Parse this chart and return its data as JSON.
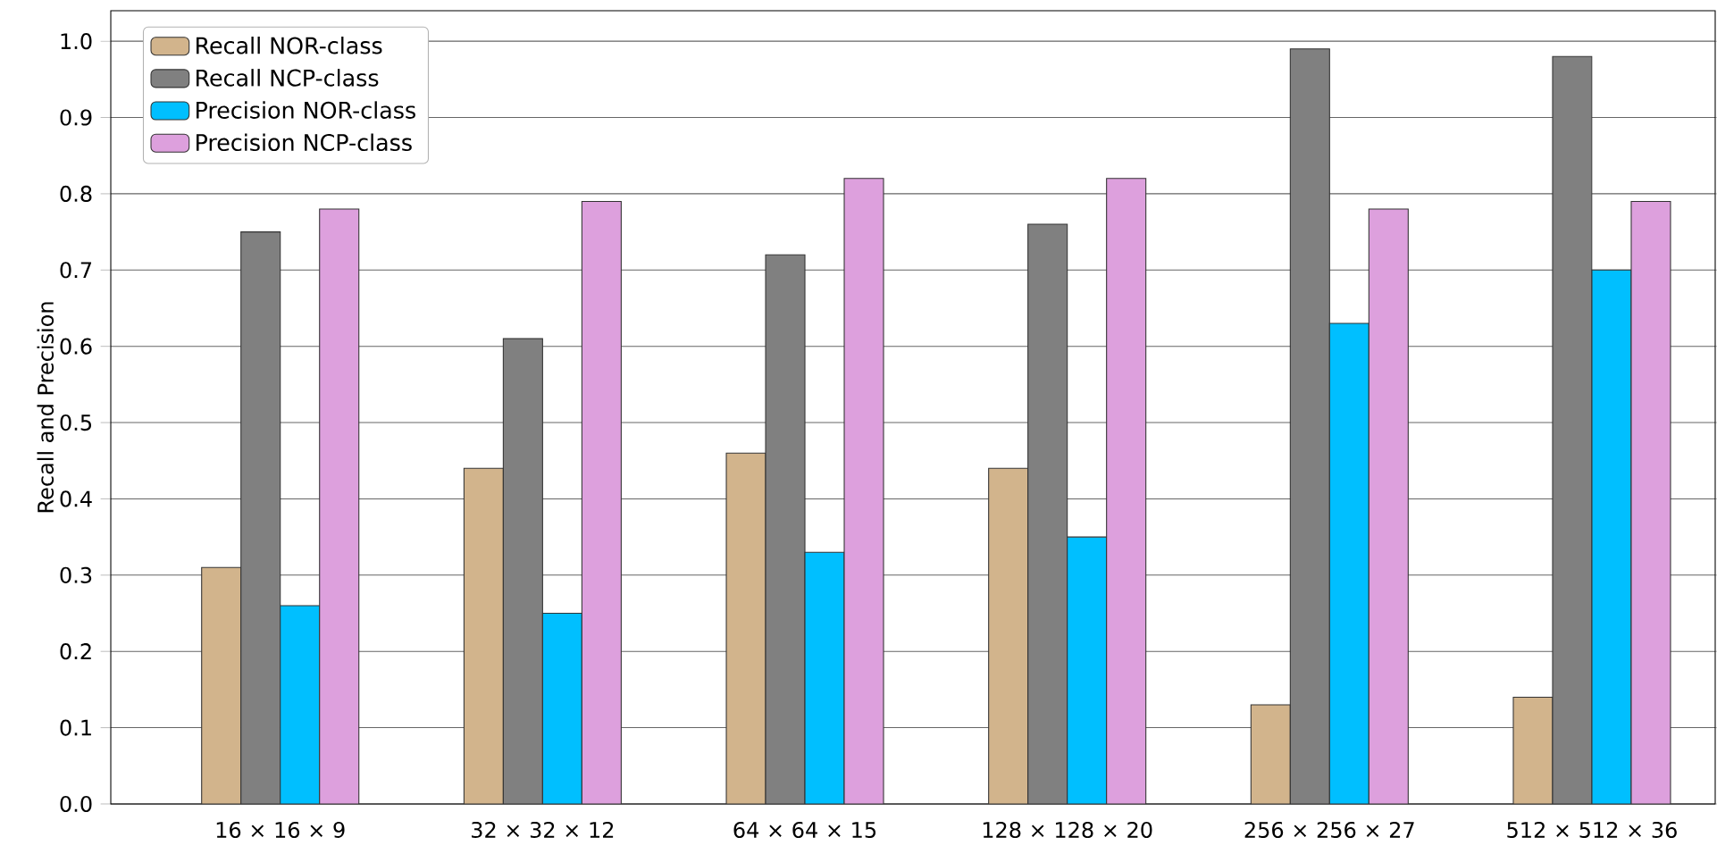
{
  "chart_data": {
    "type": "bar",
    "ylabel": "Recall and Precision",
    "categories": [
      "16 × 16 × 9",
      "32 × 32 × 12",
      "64 × 64 × 15",
      "128 × 128 × 20",
      "256 × 256 × 27",
      "512 × 512 × 36"
    ],
    "series": [
      {
        "name": "Recall NOR-class",
        "color": "#d2b48c",
        "values": [
          0.31,
          0.44,
          0.46,
          0.44,
          0.13,
          0.14
        ]
      },
      {
        "name": "Recall NCP-class",
        "color": "#808080",
        "values": [
          0.75,
          0.61,
          0.72,
          0.76,
          0.99,
          0.98
        ]
      },
      {
        "name": "Precision NOR-class",
        "color": "#00bfff",
        "values": [
          0.26,
          0.25,
          0.33,
          0.35,
          0.63,
          0.7
        ]
      },
      {
        "name": "Precision NCP-class",
        "color": "#dda0dd",
        "values": [
          0.78,
          0.79,
          0.82,
          0.82,
          0.78,
          0.79
        ]
      }
    ],
    "ylim": [
      0,
      1.04
    ],
    "yticks": [
      {
        "value": 0,
        "label": "0.0"
      },
      {
        "value": 0.1,
        "label": "0.1"
      },
      {
        "value": 0.2,
        "label": "0.2"
      },
      {
        "value": 0.3,
        "label": "0.3"
      },
      {
        "value": 0.4,
        "label": "0.4"
      },
      {
        "value": 0.5,
        "label": "0.5"
      },
      {
        "value": 0.6,
        "label": "0.6"
      },
      {
        "value": 0.7,
        "label": "0.7"
      },
      {
        "value": 0.8,
        "label": "0.8"
      },
      {
        "value": 0.9,
        "label": "0.9"
      },
      {
        "value": 1.0,
        "label": "1.0"
      }
    ],
    "grid": "y",
    "legend": "top left"
  }
}
